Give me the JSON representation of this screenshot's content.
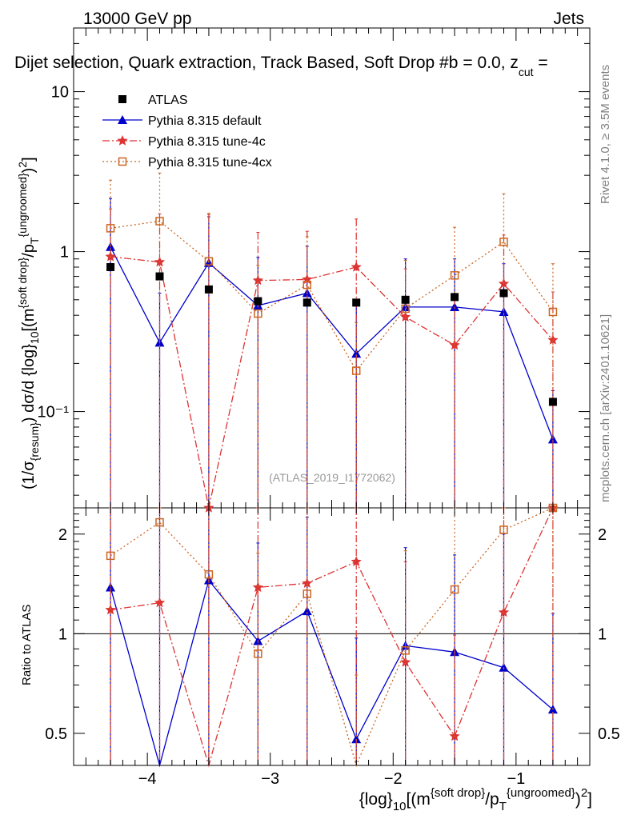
{
  "header": {
    "left": "13000 GeV pp",
    "right": "Jets",
    "title_main": "Dijet selection, Quark extraction, Track Based, Soft Drop #b",
    "title_tail": "= 0.0, z",
    "title_sub": "cut",
    "title_end": " ="
  },
  "side": {
    "rivet": "Rivet 4.1.0, ≥ 3.5M events",
    "mcplots": "mcplots.cern.ch [arXiv:2401.10621]"
  },
  "watermark": "(ATLAS_2019_I1772062)",
  "colors": {
    "data": "#000000",
    "default": "#0000cc",
    "tune4c": "#dd3333",
    "tune4cx": "#cc6622"
  },
  "chart_data": [
    {
      "type": "line",
      "panel": "main",
      "yscale": "log",
      "x": [
        -4.3,
        -3.9,
        -3.5,
        -3.1,
        -2.7,
        -2.3,
        -1.9,
        -1.5,
        -1.1,
        -0.7
      ],
      "xlim": [
        -4.6,
        -0.4
      ],
      "ylim": [
        0.025,
        25
      ],
      "ylabel": "(1/σ{resum}) dσ/d {log}10[(m{soft drop}/pT{ungroomed})2]",
      "yticks": [
        {
          "v": 0.1,
          "label": "10⁻¹"
        },
        {
          "v": 1,
          "label": "1"
        },
        {
          "v": 10,
          "label": "10"
        }
      ],
      "series": [
        {
          "name": "ATLAS",
          "key": "data",
          "marker": "square",
          "values": [
            0.8,
            0.7,
            0.58,
            0.49,
            0.48,
            0.48,
            0.5,
            0.52,
            0.55,
            0.115
          ]
        },
        {
          "name": "Pythia 8.315 default",
          "key": "default",
          "marker": "triangle",
          "dash": "",
          "values": [
            1.07,
            0.27,
            0.85,
            0.46,
            0.55,
            0.23,
            0.45,
            0.45,
            0.42,
            0.067
          ],
          "err_up": [
            2.15,
            0.55,
            1.65,
            0.92,
            1.08,
            0.47,
            0.9,
            0.9,
            0.84,
            0.135
          ],
          "err_dn": [
            0.02,
            0.02,
            0.02,
            0.02,
            0.02,
            0.02,
            0.02,
            0.02,
            0.02,
            0.02
          ]
        },
        {
          "name": "Pythia 8.315 tune-4c",
          "key": "tune4c",
          "marker": "star",
          "dash": "9,3,2,3",
          "values": [
            0.93,
            0.86,
            0.024,
            0.66,
            0.67,
            0.8,
            0.39,
            0.26,
            0.63,
            0.28
          ],
          "err_up": [
            1.85,
            1.72,
            1.7,
            1.32,
            1.34,
            1.6,
            0.78,
            0.52,
            1.27,
            0.56
          ],
          "err_dn": [
            0.02,
            0.02,
            0.02,
            0.02,
            0.02,
            0.02,
            0.02,
            0.02,
            0.02,
            0.02
          ]
        },
        {
          "name": "Pythia 8.315 tune-4cx",
          "key": "tune4cx",
          "marker": "opensquare",
          "dash": "2,3",
          "values": [
            1.4,
            1.55,
            0.87,
            0.41,
            0.62,
            0.18,
            0.44,
            0.71,
            1.15,
            0.42
          ],
          "err_up": [
            2.8,
            3.1,
            1.74,
            0.82,
            1.24,
            0.36,
            0.88,
            1.42,
            2.3,
            0.84
          ],
          "err_dn": [
            0.02,
            0.02,
            0.02,
            0.02,
            0.02,
            0.02,
            0.02,
            0.02,
            0.02,
            0.02
          ]
        }
      ]
    },
    {
      "type": "line",
      "panel": "ratio",
      "yscale": "log",
      "ylim": [
        0.4,
        2.4
      ],
      "ylabel": "Ratio to ATLAS",
      "xlabel": "{log}10[(m{soft drop}/pT{ungroomed})2]",
      "yticks": [
        {
          "v": 0.5,
          "label": "0.5"
        },
        {
          "v": 1,
          "label": "1"
        },
        {
          "v": 2,
          "label": "2"
        }
      ],
      "xticks": [
        {
          "v": -4,
          "label": "−4"
        },
        {
          "v": -3,
          "label": "−3"
        },
        {
          "v": -2,
          "label": "−2"
        },
        {
          "v": -1,
          "label": "−1"
        }
      ],
      "series": [
        {
          "name": "Pythia 8.315 default",
          "key": "default",
          "values": [
            1.38,
            0.38,
            1.45,
            0.95,
            1.17,
            0.48,
            0.92,
            0.88,
            0.79,
            0.59
          ],
          "err_up": [
            2.4,
            2.4,
            2.4,
            1.88,
            2.25,
            0.97,
            1.82,
            1.73,
            2.0,
            1.15
          ]
        },
        {
          "name": "Pythia 8.315 tune-4c",
          "key": "tune4c",
          "values": [
            1.18,
            1.24,
            0.3,
            1.38,
            1.42,
            1.65,
            0.82,
            0.49,
            1.16,
            2.4
          ],
          "err_up": [
            2.4,
            2.4,
            2.4,
            2.4,
            2.4,
            2.4,
            1.65,
            0.99,
            2.4,
            2.4
          ]
        },
        {
          "name": "Pythia 8.315 tune-4cx",
          "key": "tune4cx",
          "values": [
            1.72,
            2.17,
            1.51,
            0.87,
            1.32,
            0.37,
            0.89,
            1.36,
            2.06,
            2.4
          ],
          "err_up": [
            2.4,
            2.4,
            2.4,
            1.75,
            2.4,
            0.75,
            1.78,
            2.4,
            2.4,
            2.4
          ]
        }
      ]
    }
  ]
}
